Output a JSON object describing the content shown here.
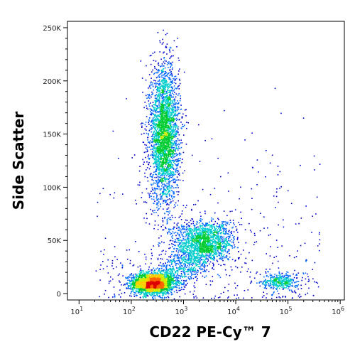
{
  "chart_data": {
    "type": "scatter",
    "plot_style": "flow cytometry pseudocolor density dot plot",
    "xlabel": "CD22 PE-Cy™ 7",
    "ylabel": "Side Scatter",
    "x_scale": "log",
    "xlim": [
      6,
      1200000
    ],
    "ylim": [
      -6000,
      256000
    ],
    "x_ticks": [
      {
        "value": 10,
        "label_base": "10",
        "label_exp": "1"
      },
      {
        "value": 100,
        "label_base": "10",
        "label_exp": "2"
      },
      {
        "value": 1000,
        "label_base": "10",
        "label_exp": "3"
      },
      {
        "value": 10000,
        "label_base": "10",
        "label_exp": "4"
      },
      {
        "value": 100000,
        "label_base": "10",
        "label_exp": "5"
      },
      {
        "value": 1000000,
        "label_base": "10",
        "label_exp": "6"
      }
    ],
    "y_ticks": [
      {
        "value": 0,
        "label": "0"
      },
      {
        "value": 50000,
        "label": "50K"
      },
      {
        "value": 100000,
        "label": "100K"
      },
      {
        "value": 150000,
        "label": "150K"
      },
      {
        "value": 200000,
        "label": "200K"
      },
      {
        "value": 250000,
        "label": "250K"
      }
    ],
    "populations": [
      {
        "center_x": 250,
        "center_y": 10000,
        "spread_logx": 0.2,
        "spread_y": 5000,
        "weight": 0.27,
        "peak_density": "high"
      },
      {
        "center_x": 420,
        "center_y": 150000,
        "spread_logx": 0.14,
        "spread_y": 32000,
        "weight": 0.33,
        "peak_density": "medium"
      },
      {
        "center_x": 2500,
        "center_y": 50000,
        "spread_logx": 0.3,
        "spread_y": 10000,
        "weight": 0.14,
        "peak_density": "low"
      },
      {
        "center_x": 70000,
        "center_y": 12000,
        "spread_logx": 0.17,
        "spread_y": 4000,
        "weight": 0.04,
        "peak_density": "low"
      }
    ],
    "grid": false,
    "legend": "none",
    "colormap": [
      "#0000cc",
      "#0066ff",
      "#00cccc",
      "#00cc33",
      "#ccee00",
      "#ffcc00",
      "#ff6600",
      "#dd0000"
    ]
  }
}
